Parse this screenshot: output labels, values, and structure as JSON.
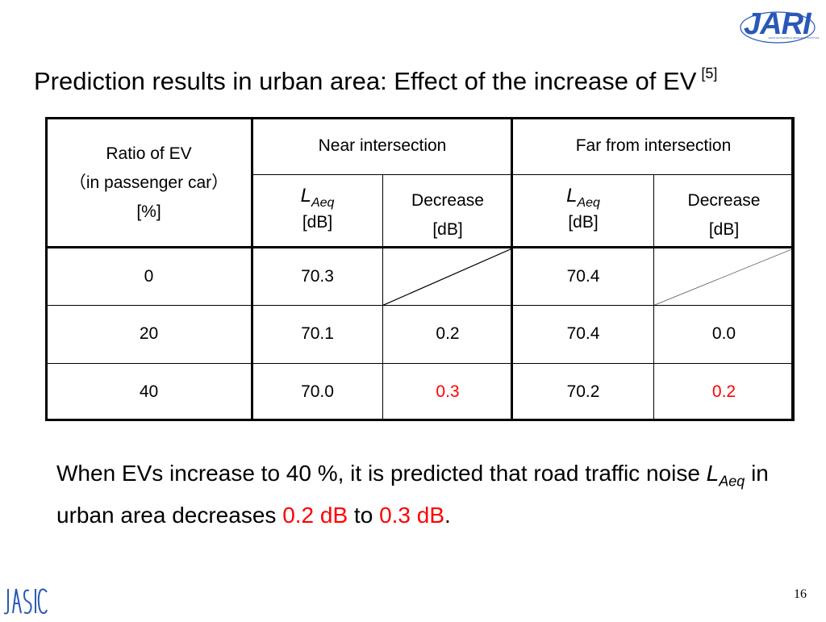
{
  "logos": {
    "top_right_text": "JARI",
    "top_right_subtext": "JAPAN AUTOMOBILE RESEARCH INSTITUTE",
    "bottom_left_text": "JASIC"
  },
  "title": {
    "text": "Prediction results in urban area: Effect of the increase of EV",
    "reference": "[5]"
  },
  "table": {
    "ratio_header": {
      "line1": "Ratio of EV",
      "line2": "（in passenger car）",
      "line3": "[%]"
    },
    "near_header": "Near intersection",
    "far_header": "Far from intersection",
    "laeq_l": "L",
    "laeq_sub": "Aeq",
    "laeq_unit": "[dB]",
    "decrease_label": "Decrease",
    "decrease_unit": "[dB]",
    "rows": [
      {
        "ratio": "0",
        "near_laeq": "70.3",
        "near_decrease": "",
        "far_laeq": "70.4",
        "far_decrease": ""
      },
      {
        "ratio": "20",
        "near_laeq": "70.1",
        "near_decrease": "0.2",
        "far_laeq": "70.4",
        "far_decrease": "0.0"
      },
      {
        "ratio": "40",
        "near_laeq": "70.0",
        "near_decrease": "0.3",
        "far_laeq": "70.2",
        "far_decrease": "0.2"
      }
    ]
  },
  "conclusion": {
    "part1": "When EVs increase to 40 %, it is predicted that road traffic noise",
    "l": "L",
    "sub": "Aeq",
    "part2": "in urban area decreases",
    "val1": "0.2 dB",
    "to": "to",
    "val2": "0.3 dB",
    "end": "."
  },
  "page_number": "16",
  "colors": {
    "highlight": "#ff0000",
    "logo_blue": "#2a58b8"
  }
}
